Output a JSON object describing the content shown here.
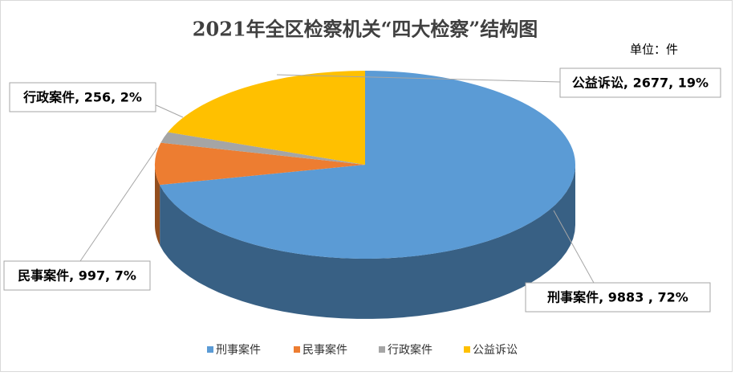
{
  "chart_data": {
    "type": "pie",
    "title": "2021年全区检察机关“四大检察”结构图",
    "subtitle": "单位：件",
    "categories": [
      "刑事案件",
      "民事案件",
      "行政案件",
      "公益诉讼"
    ],
    "values": [
      9883,
      997,
      256,
      2677
    ],
    "value_labels": [
      "刑事案件, 9883 , 72%",
      "民事案件, 997, 7%",
      "行政案件, 256, 2%",
      "公益诉讼, 2677, 19%"
    ],
    "colors": [
      "#5b9bd5",
      "#ed7d31",
      "#a5a5a5",
      "#ffc000"
    ],
    "legend": "bottom"
  }
}
